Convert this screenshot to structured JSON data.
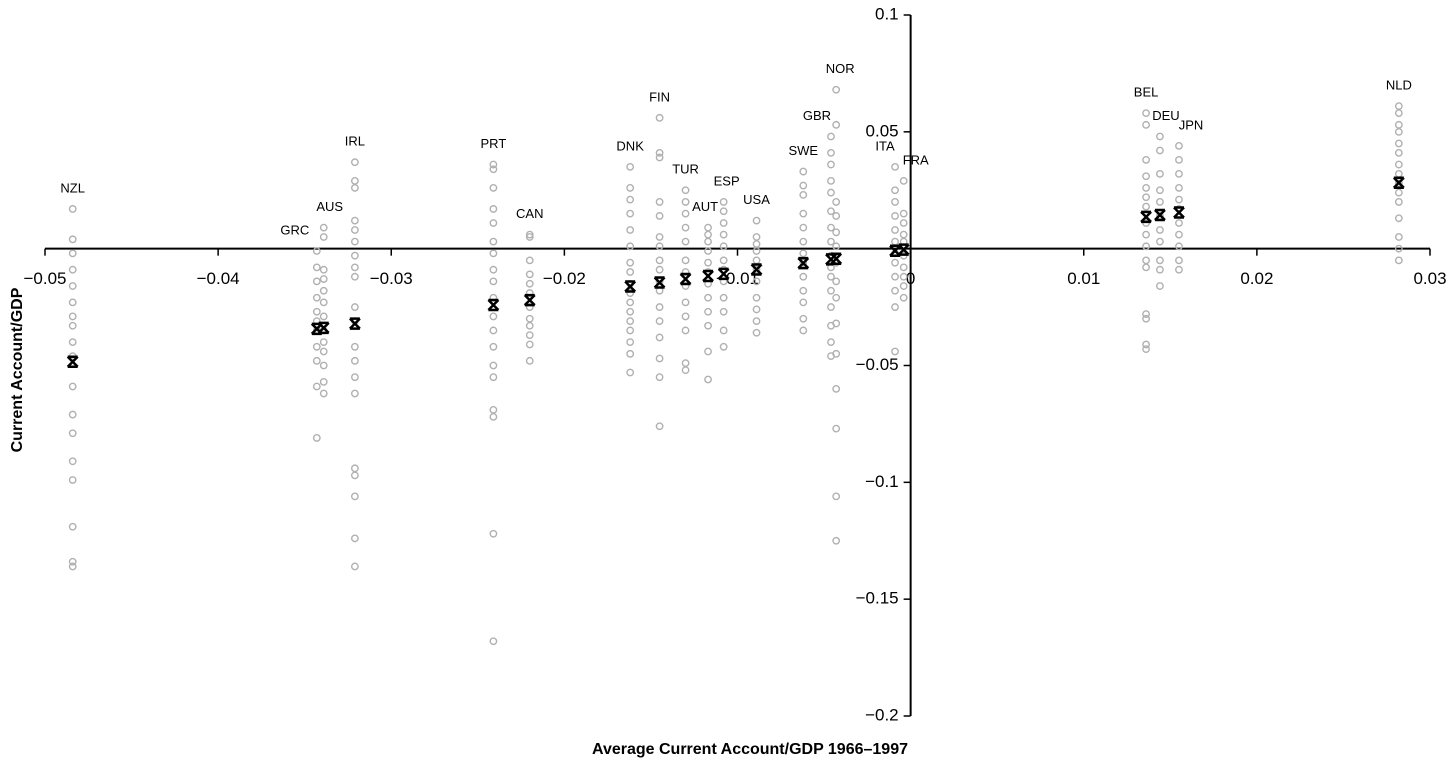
{
  "chart_data": {
    "type": "scatter",
    "x_label": "Average Current Account/GDP 1966–1997",
    "y_label": "Current Account/GDP",
    "color": "#b0b0b0",
    "mean_color": "#000000",
    "xlim": [
      -0.05,
      0.03
    ],
    "ylim": [
      -0.2,
      0.1
    ],
    "xticks": [
      {
        "value": -0.05,
        "label": "−0.05"
      },
      {
        "value": -0.04,
        "label": "−0.04"
      },
      {
        "value": -0.03,
        "label": "−0.03"
      },
      {
        "value": -0.02,
        "label": "−0.02"
      },
      {
        "value": -0.01,
        "label": "−0.01"
      },
      0,
      0.01,
      0.02,
      0.03
    ],
    "yticks": [
      0.1,
      0.05,
      {
        "value": -0.05,
        "label": "−0.05"
      },
      {
        "value": -0.1,
        "label": "−0.1"
      },
      {
        "value": -0.15,
        "label": "−0.15"
      },
      {
        "value": -0.2,
        "label": "−0.2"
      }
    ],
    "series": [
      {
        "name": "NZL",
        "x": -0.0484,
        "values": [
          0.017,
          0.004,
          -0.002,
          -0.009,
          -0.016,
          -0.023,
          -0.029,
          -0.033,
          -0.04,
          -0.046,
          -0.059,
          -0.071,
          -0.079,
          -0.091,
          -0.099,
          -0.119,
          -0.134,
          -0.136
        ]
      },
      {
        "name": "GRC",
        "x": -0.0343,
        "values": [
          -0.001,
          -0.008,
          -0.014,
          -0.021,
          -0.027,
          -0.031,
          -0.035,
          -0.042,
          -0.048,
          -0.059,
          -0.081
        ]
      },
      {
        "name": "AUS",
        "x": -0.0339,
        "values": [
          0.009,
          0.005,
          -0.009,
          -0.013,
          -0.018,
          -0.023,
          -0.029,
          -0.035,
          -0.04,
          -0.044,
          -0.05,
          -0.057,
          -0.062
        ]
      },
      {
        "name": "IRL",
        "x": -0.0321,
        "values": [
          0.037,
          0.029,
          0.026,
          0.012,
          0.008,
          0.003,
          -0.003,
          -0.008,
          -0.012,
          -0.025,
          -0.031,
          -0.042,
          -0.048,
          -0.055,
          -0.062,
          -0.094,
          -0.097,
          -0.106,
          -0.124,
          -0.136
        ]
      },
      {
        "name": "PRT",
        "x": -0.0241,
        "values": [
          0.036,
          0.034,
          0.026,
          0.017,
          0.011,
          0.003,
          -0.002,
          -0.009,
          -0.014,
          -0.021,
          -0.029,
          -0.035,
          -0.042,
          -0.05,
          -0.055,
          -0.069,
          -0.072,
          -0.122,
          -0.168
        ]
      },
      {
        "name": "CAN",
        "x": -0.022,
        "values": [
          0.006,
          0.005,
          -0.005,
          -0.011,
          -0.015,
          -0.019,
          -0.025,
          -0.03,
          -0.033,
          -0.037,
          -0.041,
          -0.048
        ]
      },
      {
        "name": "DNK",
        "x": -0.0162,
        "values": [
          0.035,
          0.026,
          0.021,
          0.015,
          0.008,
          0.001,
          -0.006,
          -0.01,
          -0.015,
          -0.019,
          -0.023,
          -0.027,
          -0.031,
          -0.035,
          -0.04,
          -0.045,
          -0.053
        ]
      },
      {
        "name": "FIN",
        "x": -0.0145,
        "values": [
          0.056,
          0.041,
          0.039,
          0.02,
          0.014,
          0.005,
          0.001,
          -0.005,
          -0.009,
          -0.014,
          -0.018,
          -0.025,
          -0.031,
          -0.038,
          -0.047,
          -0.055,
          -0.076
        ]
      },
      {
        "name": "TUR",
        "x": -0.013,
        "values": [
          0.025,
          0.02,
          0.015,
          0.009,
          0.003,
          -0.005,
          -0.01,
          -0.016,
          -0.023,
          -0.029,
          -0.035,
          -0.049,
          -0.052
        ]
      },
      {
        "name": "AUT",
        "x": -0.0117,
        "values": [
          0.009,
          0.006,
          0.003,
          -0.001,
          -0.006,
          -0.01,
          -0.015,
          -0.021,
          -0.027,
          -0.033,
          -0.044,
          -0.056
        ]
      },
      {
        "name": "ESP",
        "x": -0.0108,
        "values": [
          0.02,
          0.016,
          0.011,
          0.006,
          0.001,
          -0.005,
          -0.009,
          -0.014,
          -0.021,
          -0.027,
          -0.035,
          -0.042
        ]
      },
      {
        "name": "USA",
        "x": -0.0089,
        "values": [
          0.012,
          0.005,
          0.002,
          -0.001,
          -0.005,
          -0.009,
          -0.014,
          -0.021,
          -0.026,
          -0.031,
          -0.036
        ]
      },
      {
        "name": "SWE",
        "x": -0.0062,
        "values": [
          0.033,
          0.027,
          0.023,
          0.015,
          0.009,
          0.003,
          -0.002,
          -0.006,
          -0.012,
          -0.018,
          -0.023,
          -0.03,
          -0.035
        ]
      },
      {
        "name": "GBR",
        "x": -0.0046,
        "values": [
          0.048,
          0.041,
          0.036,
          0.029,
          0.024,
          0.016,
          0.009,
          0.003,
          -0.003,
          -0.008,
          -0.012,
          -0.018,
          -0.025,
          -0.033,
          -0.04,
          -0.046
        ]
      },
      {
        "name": "NOR",
        "x": -0.0043,
        "values": [
          0.068,
          0.053,
          0.02,
          0.014,
          0.007,
          0.001,
          -0.006,
          -0.014,
          -0.021,
          -0.032,
          -0.045,
          -0.06,
          -0.077,
          -0.106,
          -0.125
        ]
      },
      {
        "name": "ITA",
        "x": -0.0009,
        "values": [
          0.035,
          0.025,
          0.02,
          0.014,
          0.008,
          0.003,
          -0.002,
          -0.006,
          -0.012,
          -0.018,
          -0.025,
          -0.044
        ]
      },
      {
        "name": "FRA",
        "x": -0.0004,
        "values": [
          0.029,
          0.015,
          0.011,
          0.006,
          0.003,
          -0.003,
          -0.008,
          -0.012,
          -0.016,
          -0.021
        ]
      },
      {
        "name": "BEL",
        "x": 0.0136,
        "values": [
          0.058,
          0.053,
          0.038,
          0.031,
          0.026,
          0.022,
          0.018,
          0.011,
          0.006,
          0.001,
          -0.005,
          -0.008,
          -0.028,
          -0.03,
          -0.041,
          -0.043
        ]
      },
      {
        "name": "DEU",
        "x": 0.0144,
        "values": [
          0.048,
          0.042,
          0.032,
          0.025,
          0.02,
          0.014,
          0.008,
          0.003,
          -0.005,
          -0.009,
          -0.016
        ]
      },
      {
        "name": "JPN",
        "x": 0.0155,
        "values": [
          0.044,
          0.038,
          0.032,
          0.026,
          0.021,
          0.017,
          0.011,
          0.006,
          0.001,
          -0.005,
          -0.009
        ]
      },
      {
        "name": "NLD",
        "x": 0.0282,
        "values": [
          0.061,
          0.058,
          0.053,
          0.05,
          0.045,
          0.041,
          0.036,
          0.032,
          0.028,
          0.024,
          0.02,
          0.013,
          0.005,
          0.0,
          -0.005
        ]
      }
    ]
  }
}
